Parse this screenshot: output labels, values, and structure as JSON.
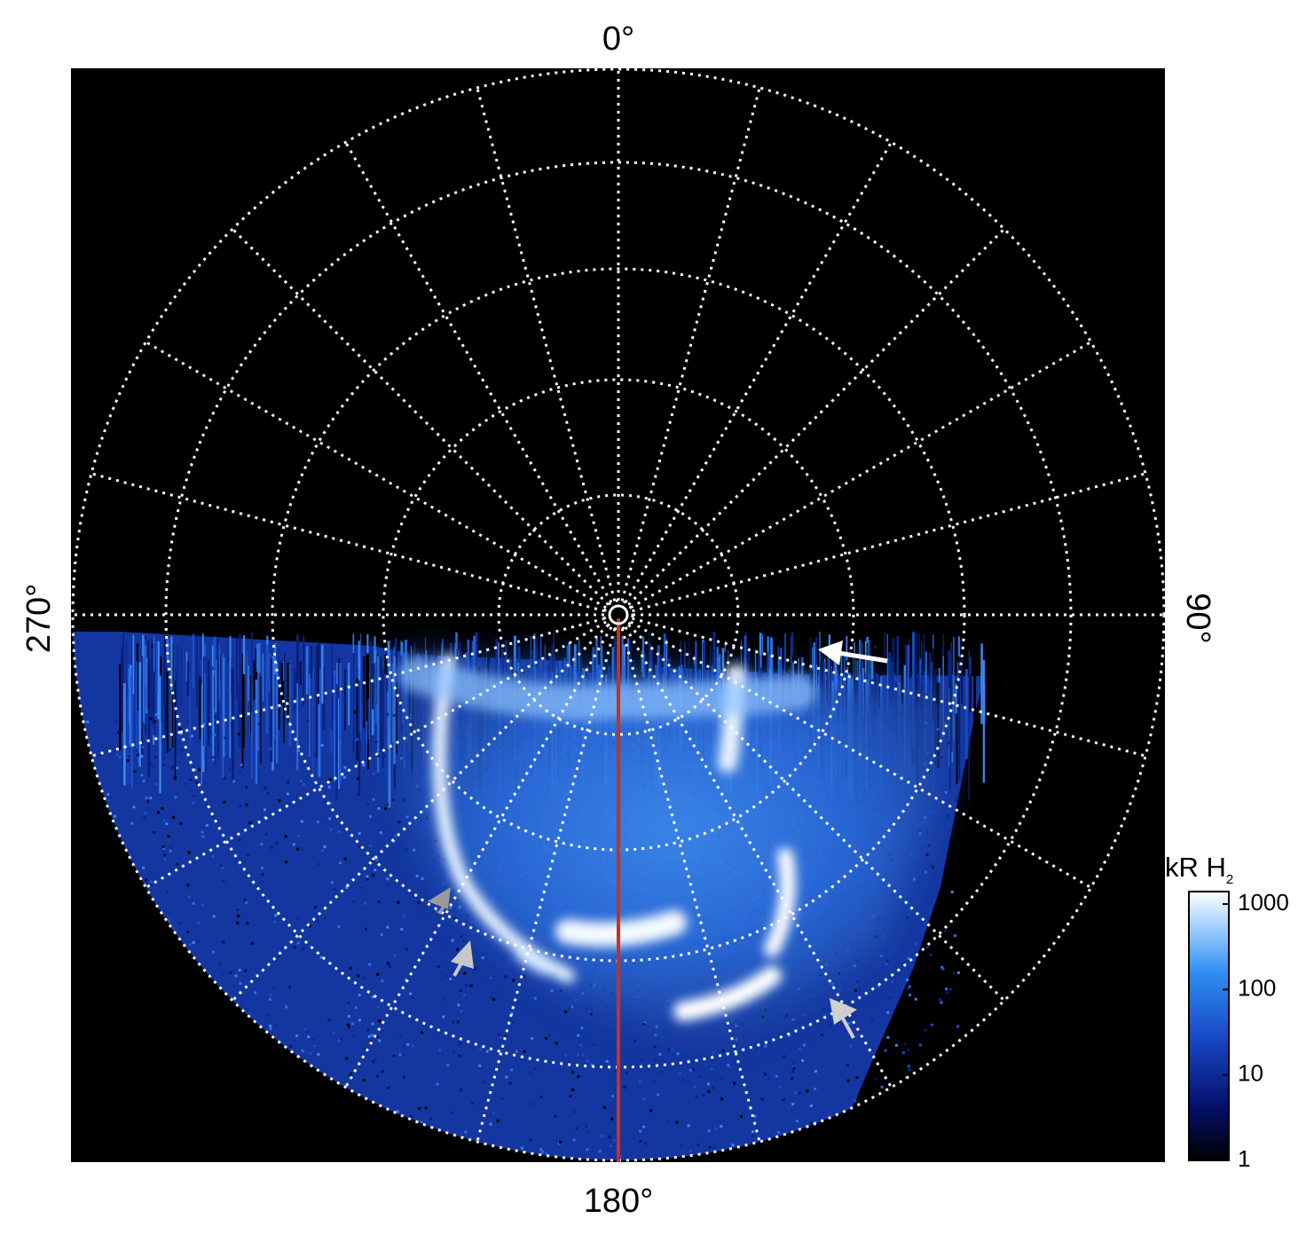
{
  "map": {
    "labels": {
      "top": "0°",
      "right": "90°",
      "bottom": "180°",
      "left": "270°"
    }
  },
  "colorbar": {
    "label": "kR H",
    "label_subscript": "2",
    "log_scale": true,
    "lim": [
      1,
      1400
    ],
    "ticks": [
      1,
      10,
      100,
      1000
    ]
  }
}
